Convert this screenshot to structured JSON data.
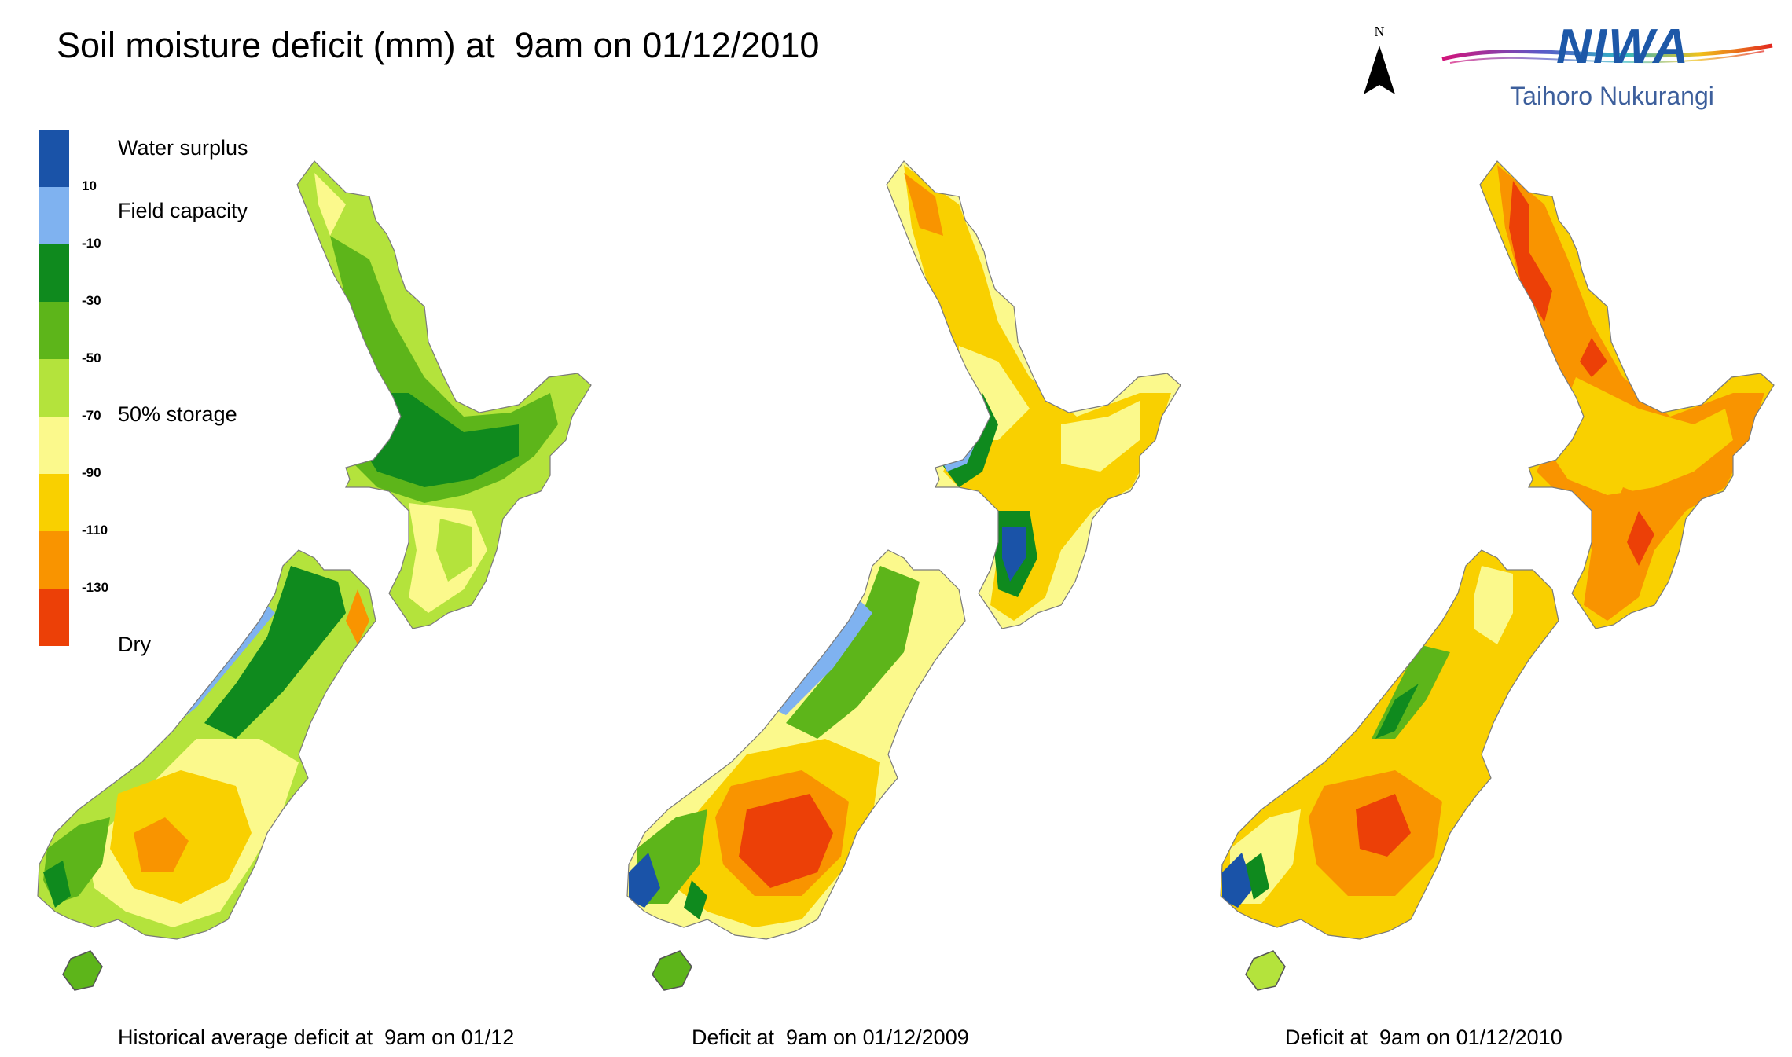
{
  "title": "Soil moisture deficit (mm) at  9am on 01/12/2010",
  "north_arrow": {
    "letter": "N"
  },
  "logo": {
    "wordmark": "NIWA",
    "tagline": "Taihoro Nukurangi"
  },
  "legend": {
    "classes": [
      {
        "color": "#1a53a8"
      },
      {
        "color": "#7fb2f0"
      },
      {
        "color": "#0f8a1e"
      },
      {
        "color": "#5db51a"
      },
      {
        "color": "#b4e33c"
      },
      {
        "color": "#fbf98c"
      },
      {
        "color": "#f9d000"
      },
      {
        "color": "#f99400"
      },
      {
        "color": "#ec4007"
      }
    ],
    "ticks": [
      "10",
      "-10",
      "-30",
      "-50",
      "-70",
      "-90",
      "-110",
      "-130"
    ],
    "labels": {
      "water_surplus": "Water surplus",
      "field_capacity": "Field capacity",
      "storage_50": "50% storage",
      "dry": "Dry"
    }
  },
  "maps": [
    {
      "caption": "Historical average deficit at  9am on 01/12",
      "palette": "wet"
    },
    {
      "caption": "Deficit at  9am on 01/12/2009",
      "palette": "mid"
    },
    {
      "caption": "Deficit at  9am on 01/12/2010",
      "palette": "dry"
    }
  ]
}
